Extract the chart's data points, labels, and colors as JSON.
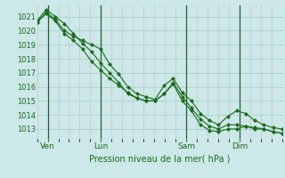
{
  "xlabel": "Pression niveau de la mer( hPa )",
  "bg_color": "#cce8e8",
  "plot_bg_color": "#cce8e8",
  "grid_color_major": "#a8d0d0",
  "grid_color_minor": "#d0b8b8",
  "line_color": "#1a6b1a",
  "tick_label_color": "#1a6b1a",
  "ylim": [
    1012.3,
    1021.8
  ],
  "yticks": [
    1013,
    1014,
    1015,
    1016,
    1017,
    1018,
    1019,
    1020,
    1021
  ],
  "day_labels": [
    "Ven",
    "Lun",
    "Sam",
    "Dim"
  ],
  "day_positions": [
    0.5,
    3.0,
    7.0,
    9.5
  ],
  "xmin": 0.0,
  "xmax": 11.5,
  "series1": [
    1020.7,
    1021.5,
    1021.0,
    1020.5,
    1019.8,
    1019.1,
    1018.5,
    1017.7,
    1017.0,
    1016.3,
    1015.5,
    1015.2,
    1015.0,
    1015.0,
    1015.5,
    1016.2,
    1015.0,
    1014.3,
    1013.3,
    1012.9,
    1012.8,
    1013.0,
    1013.0,
    1013.2,
    1013.0,
    1013.0,
    1012.8,
    1012.7
  ],
  "series2": [
    1020.6,
    1021.2,
    1020.7,
    1019.8,
    1019.3,
    1018.7,
    1017.8,
    1017.2,
    1016.6,
    1016.1,
    1015.6,
    1015.2,
    1015.0,
    1015.0,
    1015.5,
    1016.3,
    1015.3,
    1014.5,
    1013.7,
    1013.2,
    1013.0,
    1013.3,
    1013.3,
    1013.2,
    1013.1,
    1013.0,
    1012.8,
    1012.7
  ],
  "series3": [
    1020.6,
    1021.3,
    1020.8,
    1020.0,
    1019.6,
    1019.3,
    1019.0,
    1018.7,
    1017.6,
    1016.9,
    1016.0,
    1015.5,
    1015.3,
    1015.1,
    1016.1,
    1016.6,
    1015.6,
    1015.0,
    1014.1,
    1013.6,
    1013.3,
    1013.9,
    1014.3,
    1014.1,
    1013.6,
    1013.3,
    1013.1,
    1013.0
  ],
  "n_points": 28,
  "vline_positions": [
    0.5,
    3.0,
    7.0,
    9.5
  ],
  "minor_vgrid_step": 0.5
}
